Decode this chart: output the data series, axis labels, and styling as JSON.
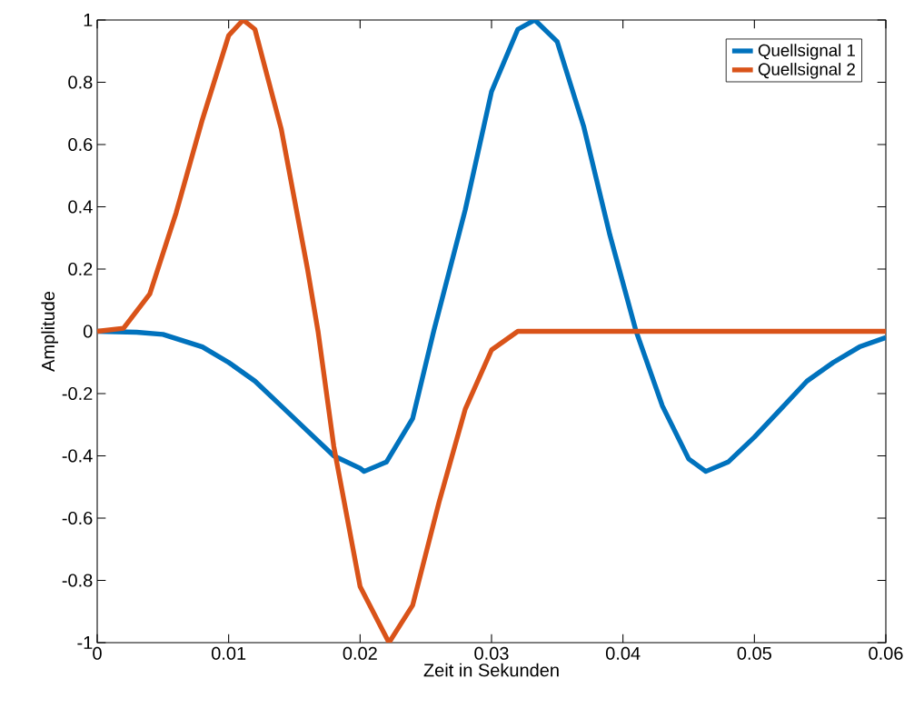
{
  "chart_data": {
    "type": "line",
    "xlabel": "Zeit in Sekunden",
    "ylabel": "Amplitude",
    "xlim": [
      0,
      0.06
    ],
    "ylim": [
      -1,
      1
    ],
    "xticks": [
      0,
      0.01,
      0.02,
      0.03,
      0.04,
      0.05,
      0.06
    ],
    "yticks": [
      -1,
      -0.8,
      -0.6,
      -0.4,
      -0.2,
      0,
      0.2,
      0.4,
      0.6,
      0.8,
      1
    ],
    "grid": false,
    "legend": "top right",
    "marker": "none",
    "line_style": "solid",
    "series": [
      {
        "name": "Quellsignal 1",
        "color": "#0072bd",
        "x": [
          0,
          0.003,
          0.005,
          0.008,
          0.01,
          0.012,
          0.014,
          0.016,
          0.018,
          0.02,
          0.0203,
          0.022,
          0.024,
          0.0256,
          0.028,
          0.03,
          0.032,
          0.0333,
          0.035,
          0.037,
          0.039,
          0.041,
          0.043,
          0.045,
          0.0463,
          0.048,
          0.05,
          0.052,
          0.054,
          0.056,
          0.058,
          0.06
        ],
        "values": [
          0,
          -0.003,
          -0.01,
          -0.05,
          -0.1,
          -0.16,
          -0.24,
          -0.32,
          -0.4,
          -0.44,
          -0.45,
          -0.42,
          -0.28,
          0,
          0.39,
          0.77,
          0.97,
          1,
          0.93,
          0.66,
          0.31,
          0,
          -0.24,
          -0.41,
          -0.45,
          -0.42,
          -0.34,
          -0.25,
          -0.16,
          -0.1,
          -0.05,
          -0.02
        ]
      },
      {
        "name": "Quellsignal 2",
        "color": "#d95319",
        "x": [
          0,
          0.002,
          0.004,
          0.006,
          0.008,
          0.01,
          0.0111,
          0.012,
          0.014,
          0.016,
          0.0168,
          0.018,
          0.02,
          0.0222,
          0.024,
          0.026,
          0.028,
          0.03,
          0.032,
          0.033,
          0.06
        ],
        "values": [
          0,
          0.01,
          0.12,
          0.38,
          0.68,
          0.95,
          1,
          0.97,
          0.65,
          0.2,
          0,
          -0.37,
          -0.82,
          -1,
          -0.88,
          -0.55,
          -0.25,
          -0.06,
          0,
          0,
          0
        ]
      }
    ]
  }
}
